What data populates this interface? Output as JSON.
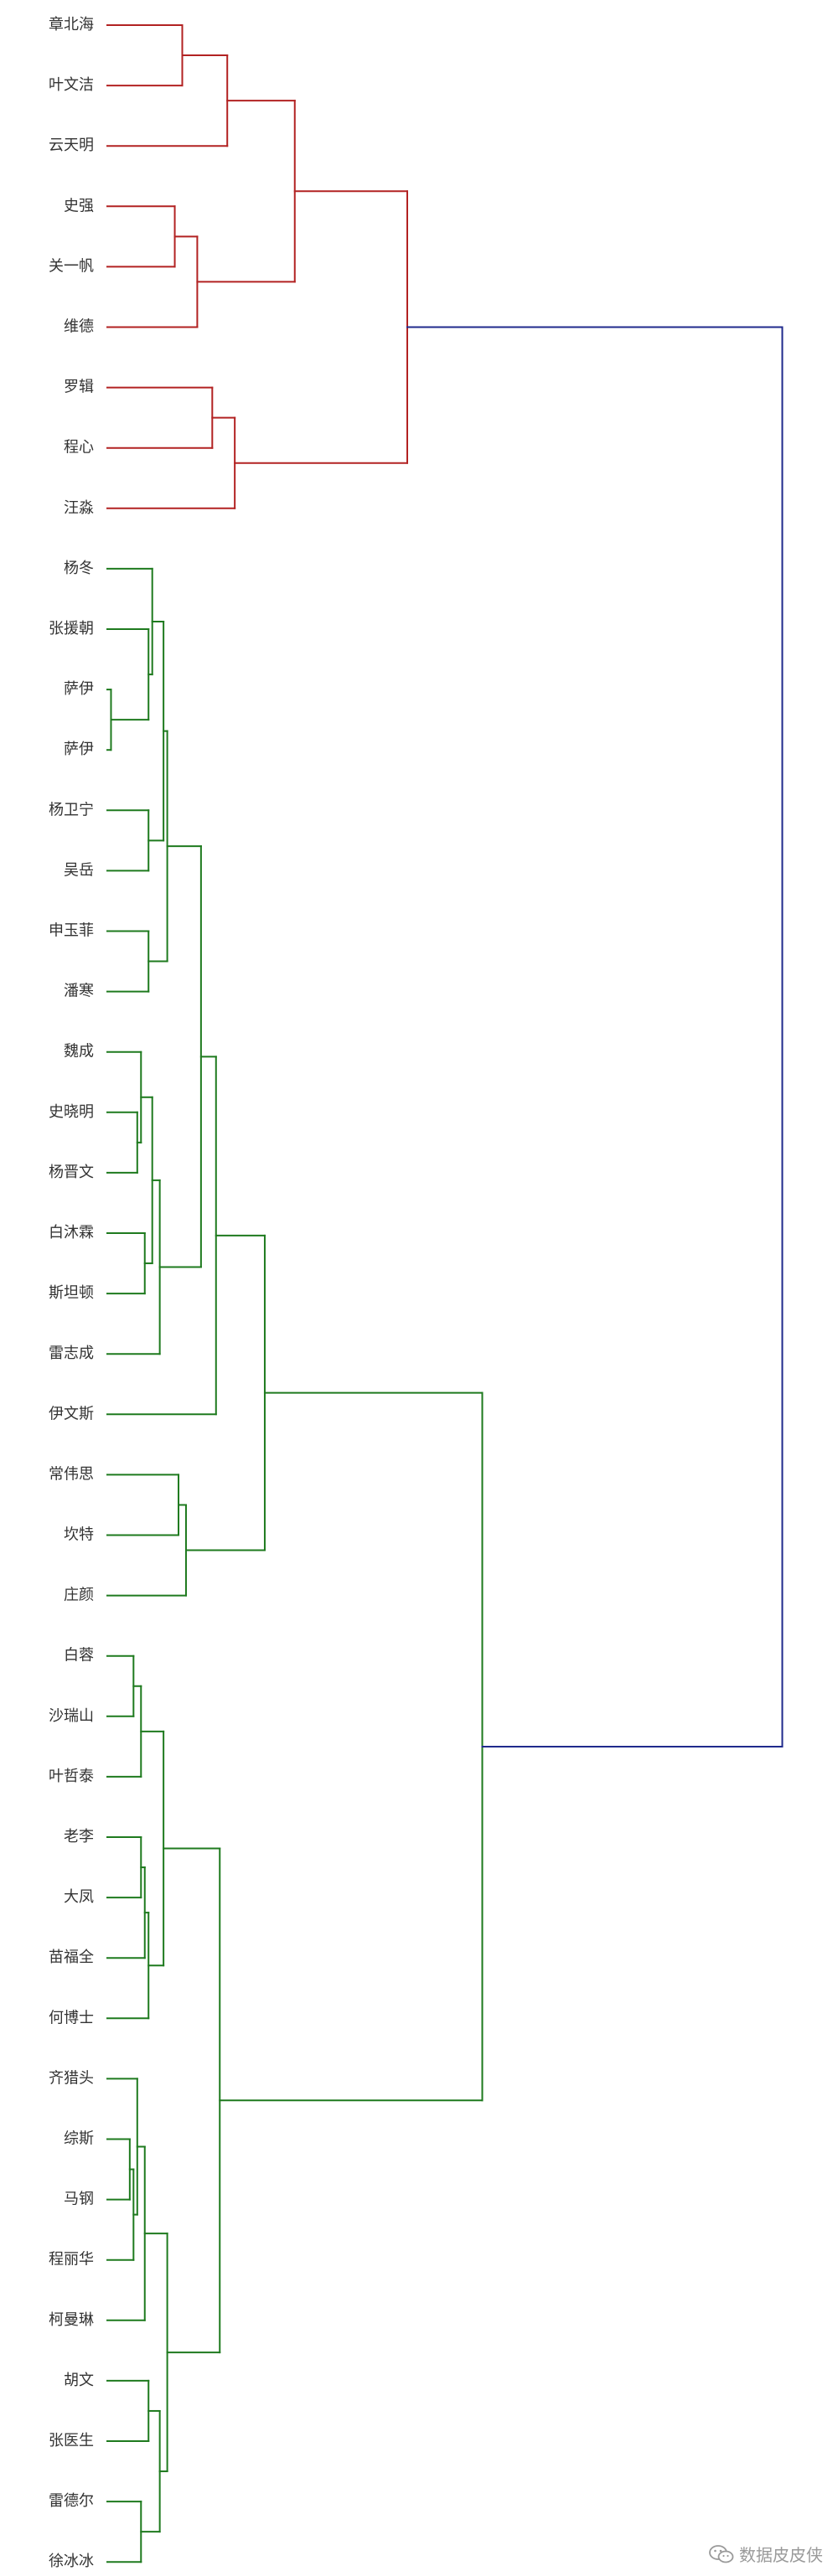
{
  "chart_data": {
    "type": "dendrogram",
    "orientation": "left",
    "leaves": [
      "章北海",
      "叶文洁",
      "云天明",
      "史强",
      "关一帆",
      "维德",
      "罗辑",
      "程心",
      "汪淼",
      "杨冬",
      "张援朝",
      "萨伊",
      "萨伊",
      "杨卫宁",
      "吴岳",
      "申玉菲",
      "潘寒",
      "魏成",
      "史晓明",
      "杨晋文",
      "白沐霖",
      "斯坦顿",
      "雷志成",
      "伊文斯",
      "常伟思",
      "坎特",
      "庄颜",
      "白蓉",
      "沙瑞山",
      "叶哲泰",
      "老李",
      "大凤",
      "苗福全",
      "何博士",
      "齐猎头",
      "综斯",
      "马钢",
      "程丽华",
      "柯曼琳",
      "胡文",
      "张医生",
      "雷德尔",
      "徐冰冰"
    ],
    "merges": [
      {
        "a": "L0",
        "b": "L1",
        "h": 1.0,
        "c": "red"
      },
      {
        "a": "N0",
        "b": "L2",
        "h": 1.6,
        "c": "red"
      },
      {
        "a": "L3",
        "b": "L4",
        "h": 0.9,
        "c": "red"
      },
      {
        "a": "N2",
        "b": "L5",
        "h": 1.2,
        "c": "red"
      },
      {
        "a": "N1",
        "b": "N3",
        "h": 2.5,
        "c": "red"
      },
      {
        "a": "L6",
        "b": "L7",
        "h": 1.4,
        "c": "red"
      },
      {
        "a": "N5",
        "b": "L8",
        "h": 1.7,
        "c": "red"
      },
      {
        "a": "N4",
        "b": "N6",
        "h": 4.0,
        "c": "red"
      },
      {
        "a": "L11",
        "b": "L12",
        "h": 0.05,
        "c": "green"
      },
      {
        "a": "L10",
        "b": "N8",
        "h": 0.55,
        "c": "green"
      },
      {
        "a": "L9",
        "b": "N9",
        "h": 0.6,
        "c": "green"
      },
      {
        "a": "L13",
        "b": "L14",
        "h": 0.55,
        "c": "green"
      },
      {
        "a": "N10",
        "b": "N11",
        "h": 0.75,
        "c": "green"
      },
      {
        "a": "L15",
        "b": "L16",
        "h": 0.55,
        "c": "green"
      },
      {
        "a": "N12",
        "b": "N13",
        "h": 0.8,
        "c": "green"
      },
      {
        "a": "L18",
        "b": "L19",
        "h": 0.4,
        "c": "green"
      },
      {
        "a": "L17",
        "b": "N15",
        "h": 0.45,
        "c": "green"
      },
      {
        "a": "L20",
        "b": "L21",
        "h": 0.5,
        "c": "green"
      },
      {
        "a": "N16",
        "b": "N17",
        "h": 0.6,
        "c": "green"
      },
      {
        "a": "N18",
        "b": "L22",
        "h": 0.7,
        "c": "green"
      },
      {
        "a": "N14",
        "b": "N19",
        "h": 1.25,
        "c": "green"
      },
      {
        "a": "N20",
        "b": "L23",
        "h": 1.45,
        "c": "green"
      },
      {
        "a": "L24",
        "b": "L25",
        "h": 0.95,
        "c": "green"
      },
      {
        "a": "N22",
        "b": "L26",
        "h": 1.05,
        "c": "green"
      },
      {
        "a": "N21",
        "b": "N23",
        "h": 2.1,
        "c": "green"
      },
      {
        "a": "L27",
        "b": "L28",
        "h": 0.35,
        "c": "green"
      },
      {
        "a": "N25",
        "b": "L29",
        "h": 0.45,
        "c": "green"
      },
      {
        "a": "L30",
        "b": "L31",
        "h": 0.45,
        "c": "green"
      },
      {
        "a": "N27",
        "b": "L32",
        "h": 0.5,
        "c": "green"
      },
      {
        "a": "N28",
        "b": "L33",
        "h": 0.55,
        "c": "green"
      },
      {
        "a": "N26",
        "b": "N29",
        "h": 0.75,
        "c": "green"
      },
      {
        "a": "L35",
        "b": "L36",
        "h": 0.3,
        "c": "green"
      },
      {
        "a": "N31",
        "b": "L37",
        "h": 0.35,
        "c": "green"
      },
      {
        "a": "L34",
        "b": "N32",
        "h": 0.4,
        "c": "green"
      },
      {
        "a": "N33",
        "b": "L38",
        "h": 0.5,
        "c": "green"
      },
      {
        "a": "L39",
        "b": "L40",
        "h": 0.55,
        "c": "green"
      },
      {
        "a": "L41",
        "b": "L42",
        "h": 0.45,
        "c": "green"
      },
      {
        "a": "N35",
        "b": "N36",
        "h": 0.7,
        "c": "green"
      },
      {
        "a": "N34",
        "b": "N37",
        "h": 0.8,
        "c": "green"
      },
      {
        "a": "N30",
        "b": "N38",
        "h": 1.5,
        "c": "green"
      },
      {
        "a": "N24",
        "b": "N39",
        "h": 5.0,
        "c": "green"
      },
      {
        "a": "N7",
        "b": "N40",
        "h": 9.0,
        "c": "blue"
      }
    ],
    "colors": {
      "red": "#b22222",
      "green": "#1e7a1e",
      "blue": "#1f2a8c"
    }
  },
  "watermark": {
    "text": "数据皮皮侠",
    "icon": "wechat-icon"
  }
}
